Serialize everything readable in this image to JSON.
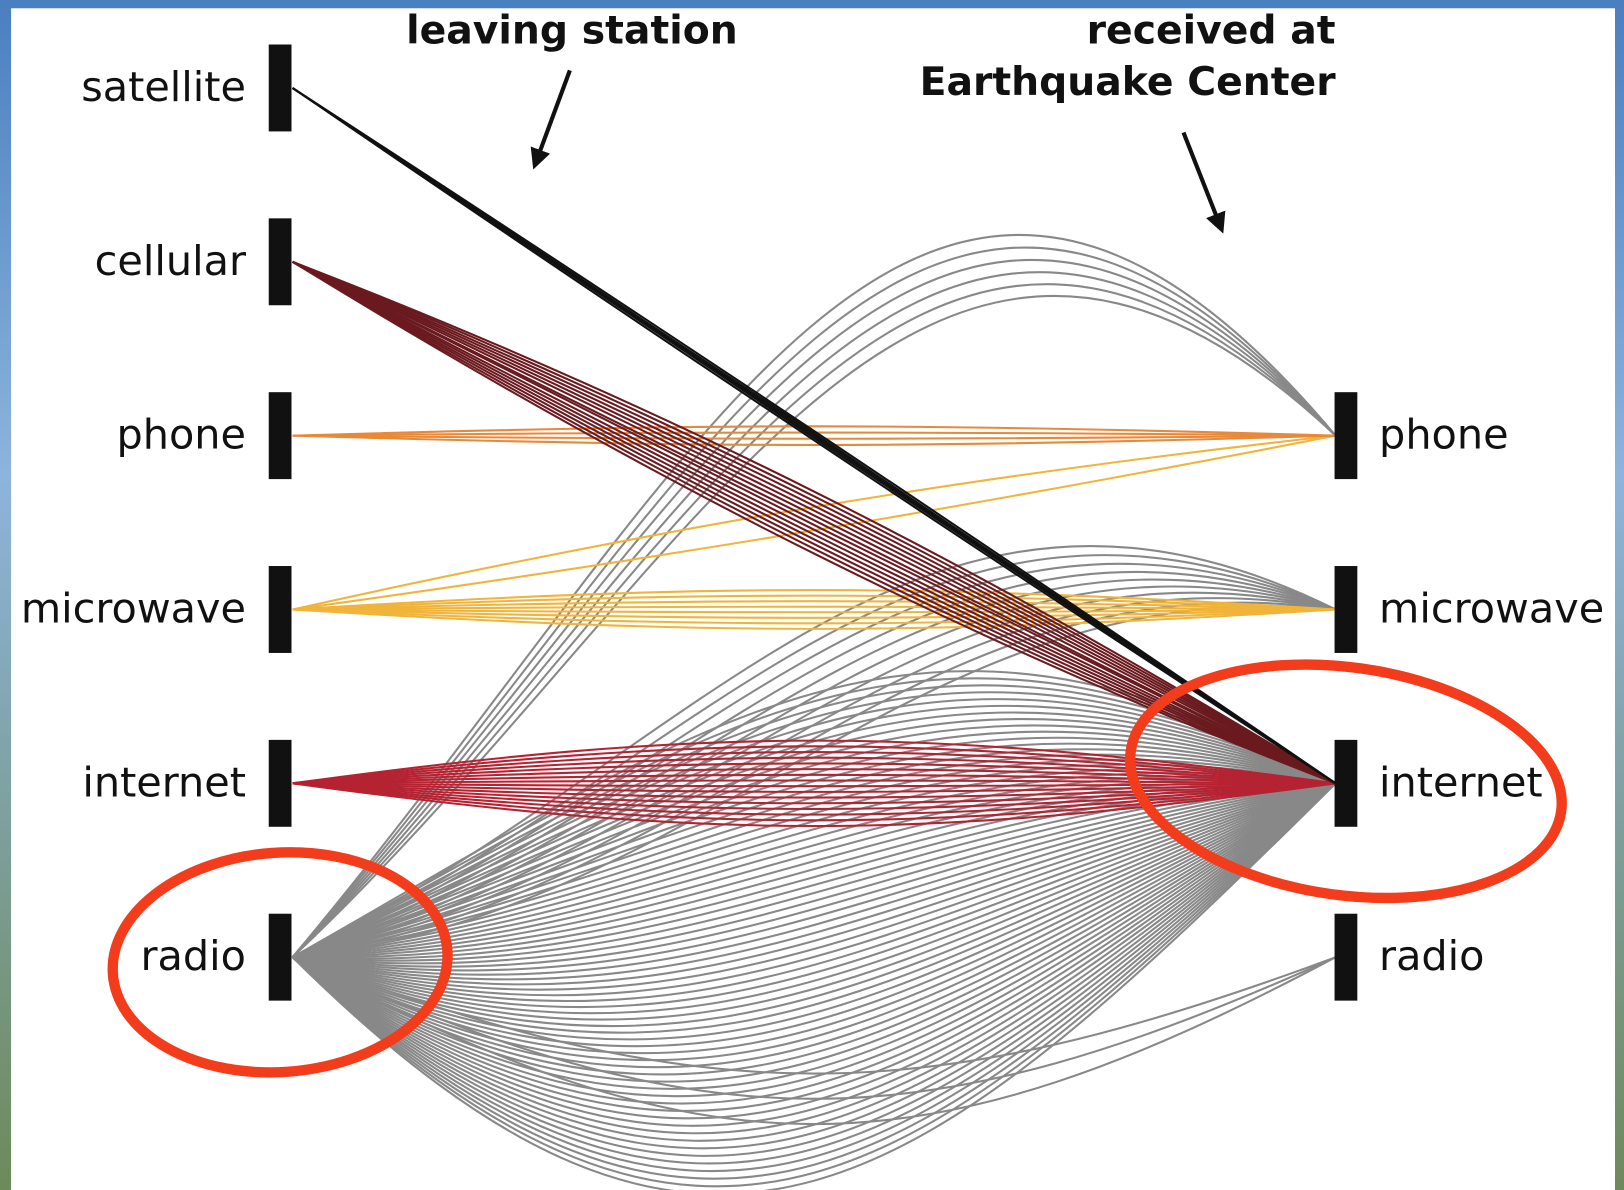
{
  "annotations": {
    "leaving": "leaving station",
    "received": [
      "received at",
      "Earthquake Center"
    ]
  },
  "left_nodes": [
    "satellite",
    "cellular",
    "phone",
    "microwave",
    "internet",
    "radio"
  ],
  "right_nodes": [
    "phone",
    "microwave",
    "internet",
    "radio"
  ]
}
